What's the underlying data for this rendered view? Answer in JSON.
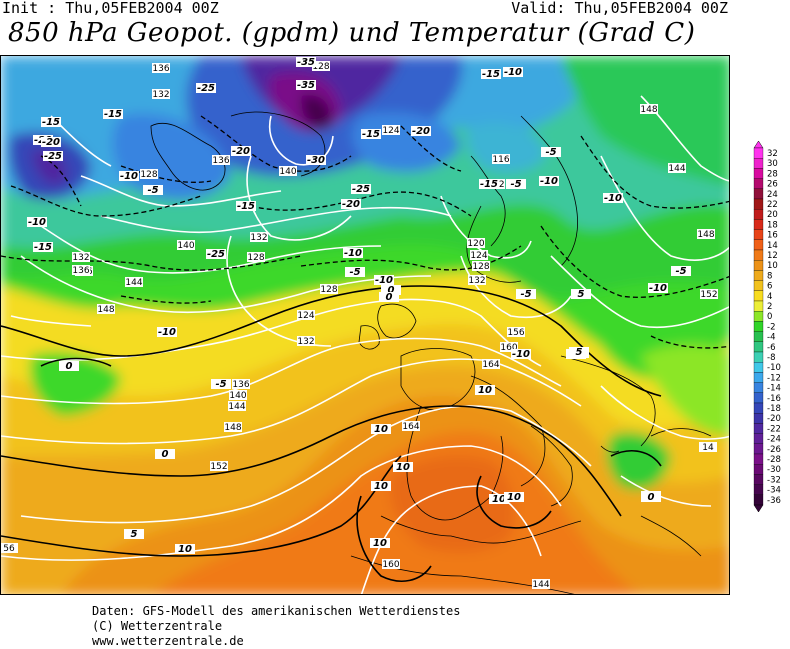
{
  "header": {
    "init": "Init : Thu,05FEB2004 00Z",
    "valid": "Valid: Thu,05FEB2004 00Z",
    "title": "850 hPa Geopot. (gpdm) und Temperatur (Grad C)"
  },
  "footer": {
    "line1": "Daten: GFS-Modell des amerikanischen Wetterdienstes",
    "line2": "(C) Wetterzentrale",
    "line3": "www.wetterzentrale.de"
  },
  "legend": {
    "values": [
      "32",
      "30",
      "28",
      "26",
      "24",
      "22",
      "20",
      "18",
      "16",
      "14",
      "12",
      "10",
      "8",
      "6",
      "4",
      "2",
      "0",
      "-2",
      "-4",
      "-6",
      "-8",
      "-10",
      "-12",
      "-14",
      "-16",
      "-18",
      "-20",
      "-22",
      "-24",
      "-26",
      "-28",
      "-30",
      "-32",
      "-34",
      "-36"
    ],
    "colors": [
      "#ff33ee",
      "#ee22cc",
      "#d80aa0",
      "#b40a6e",
      "#90103a",
      "#a01818",
      "#c01c1c",
      "#d82a1a",
      "#e84418",
      "#f06018",
      "#f07a18",
      "#ec9218",
      "#eeaa1c",
      "#f2c21e",
      "#f8dc20",
      "#ecee38",
      "#8ce628",
      "#30d428",
      "#28c050",
      "#30c680",
      "#3cd0b4",
      "#40c8e8",
      "#3ca8ec",
      "#3884e0",
      "#3462cc",
      "#3446b8",
      "#3c34a8",
      "#5028a0",
      "#602098",
      "#6c1890",
      "#7a1088",
      "#6a0a74",
      "#580860",
      "#46064e",
      "#340438"
    ]
  },
  "map": {
    "geopotential_labels": [
      "136",
      "132",
      "128",
      "136",
      "132",
      "128",
      "136",
      "140",
      "136",
      "132",
      "128",
      "140",
      "144",
      "148",
      "128",
      "124",
      "132",
      "136",
      "140",
      "144",
      "148",
      "152",
      "56",
      "124",
      "116",
      "112",
      "120",
      "124",
      "128",
      "132",
      "148",
      "144",
      "148",
      "152",
      "156",
      "160",
      "164",
      "164",
      "160",
      "144",
      "14"
    ],
    "temperature_labels": [
      "-15",
      "-20",
      "-25",
      "-15",
      "-25",
      "-20",
      "-30",
      "-35",
      "-35",
      "-25",
      "-15",
      "-20",
      "-15",
      "-10",
      "-5",
      "-10",
      "-15",
      "-20",
      "-25",
      "-20",
      "-10",
      "-15",
      "-10",
      "-5",
      "-5",
      "-10",
      "-10",
      "-5",
      "-5",
      "-10",
      "-15",
      "-10",
      "-5",
      "-10",
      "-5",
      "0",
      "5",
      "0",
      "0",
      "5",
      "0",
      "-10",
      "-5",
      "0",
      "0",
      "5",
      "10",
      "10",
      "10",
      "10",
      "10",
      "10",
      "10",
      "10",
      "5",
      "0"
    ]
  }
}
